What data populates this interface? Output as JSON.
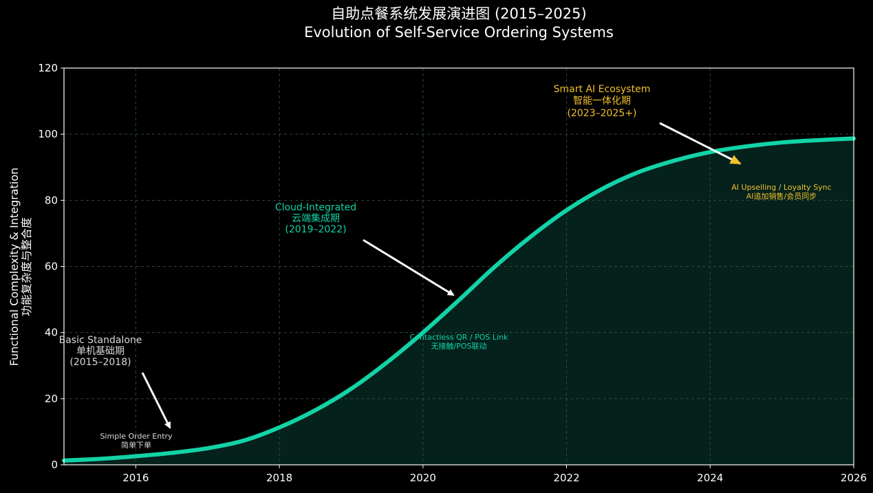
{
  "chart_data": {
    "type": "line",
    "title_zh": "自助点餐系统发展演进图 (2015–2025)",
    "title_en": "Evolution of Self-Service Ordering Systems",
    "xlabel": "",
    "ylabel_en": "Functional Complexity & Integration",
    "ylabel_zh": "功能复杂度与整合度",
    "xlim": [
      2015,
      2026
    ],
    "ylim": [
      0,
      120
    ],
    "xticks": [
      "2016",
      "2018",
      "2020",
      "2022",
      "2024",
      "2026"
    ],
    "yticks": [
      "0",
      "20",
      "40",
      "60",
      "80",
      "100",
      "120"
    ],
    "grid": true,
    "series": [
      {
        "x": [
          2015,
          2015.5,
          2016,
          2016.5,
          2017,
          2017.5,
          2018,
          2018.5,
          2019,
          2019.5,
          2020,
          2020.5,
          2021,
          2021.5,
          2022,
          2022.5,
          2023,
          2023.5,
          2024,
          2024.5,
          2025,
          2025.5,
          2026
        ],
        "y": [
          1.3,
          1.8,
          2.6,
          3.6,
          5.0,
          7.3,
          11.3,
          16.5,
          23.0,
          31.0,
          40.0,
          49.8,
          59.9,
          69.0,
          77.0,
          83.5,
          88.5,
          92.0,
          94.6,
          96.3,
          97.5,
          98.2,
          98.7
        ]
      }
    ],
    "colors": {
      "line": "#12d3a7",
      "fill": "#04211c",
      "phase1": "#d9d9d9",
      "phase2": "#12d3a7",
      "phase3": "#f2c02c",
      "arrow": "#ffffff"
    },
    "phases": [
      {
        "en": "Basic Standalone",
        "zh": "单机基础期",
        "years": "(2015–2018)",
        "feature_en": "Simple Order Entry",
        "feature_zh": "简单下单"
      },
      {
        "en": "Cloud-Integrated",
        "zh": "云端集成期",
        "years": "(2019–2022)",
        "feature_en": "Contactless QR / POS Link",
        "feature_zh": "无接触/POS联动"
      },
      {
        "en": "Smart AI Ecosystem",
        "zh": "智能一体化期",
        "years": "(2023–2025+)",
        "feature_en": "AI Upselling / Loyalty Sync",
        "feature_zh": "AI追加销售/会员同步"
      }
    ]
  }
}
